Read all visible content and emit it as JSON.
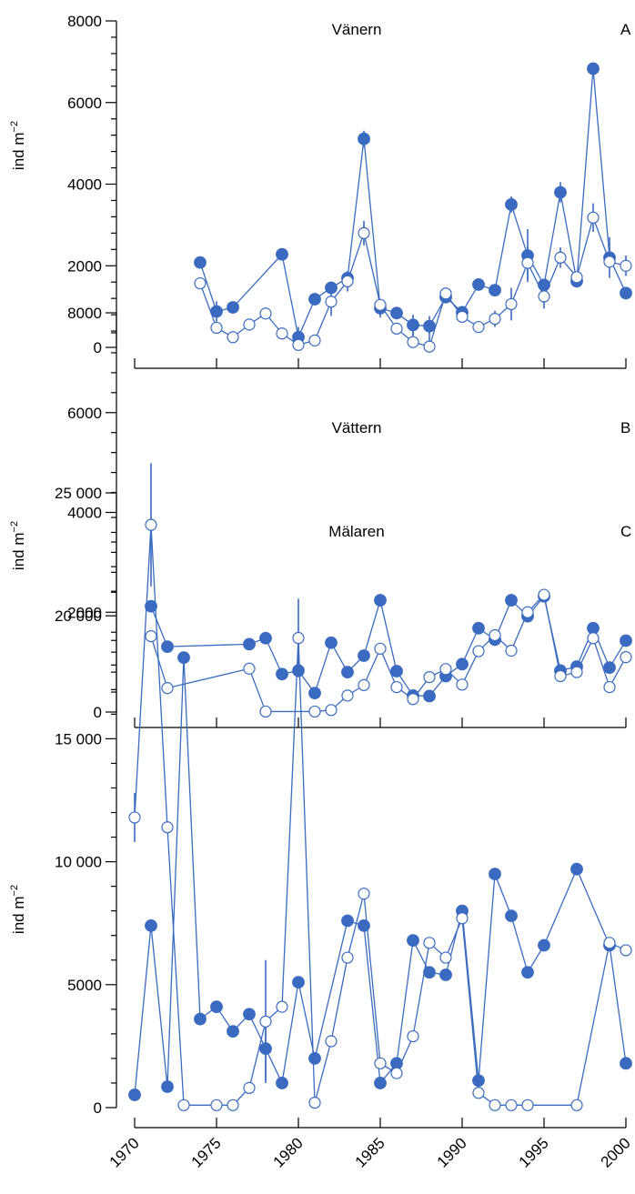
{
  "colors": {
    "series": "#3a6bc0",
    "axis": "#000000"
  },
  "x_tick_labels": [
    "1970",
    "1975",
    "1980",
    "1985",
    "1990",
    "1995",
    "2000"
  ],
  "chart_data": [
    {
      "type": "line",
      "title": "Vänern",
      "panel_letter": "A",
      "ylabel": "ind m⁻²",
      "xlim": [
        1970,
        2000
      ],
      "ylim": [
        0,
        8000
      ],
      "yticks": [
        0,
        2000,
        4000,
        6000,
        8000
      ],
      "ytick_labels": [
        "0",
        "2000",
        "4000",
        "6000",
        "8000"
      ],
      "series": [
        {
          "marker": "filled",
          "x": [
            1974,
            1975,
            1976,
            1979,
            1980,
            1981,
            1982,
            1983,
            1984,
            1985,
            1986,
            1987,
            1988,
            1989,
            1990,
            1991,
            1992,
            1993,
            1994,
            1995,
            1996,
            1997,
            1998,
            1999,
            2000
          ],
          "y": [
            2080,
            880,
            980,
            2280,
            250,
            1180,
            1460,
            1700,
            5110,
            960,
            840,
            550,
            520,
            1230,
            860,
            1540,
            1400,
            3500,
            2250,
            1530,
            3800,
            1620,
            6830,
            2200,
            1330
          ],
          "err": [
            0,
            250,
            0,
            0,
            250,
            0,
            150,
            0,
            200,
            230,
            0,
            250,
            250,
            150,
            0,
            130,
            0,
            200,
            650,
            0,
            250,
            0,
            0,
            500,
            0
          ]
        },
        {
          "marker": "open",
          "x": [
            1974,
            1975,
            1976,
            1977,
            1978,
            1979,
            1980,
            1981,
            1982,
            1983,
            1984,
            1985,
            1986,
            1987,
            1988,
            1989,
            1990,
            1991,
            1992,
            1993,
            1994,
            1995,
            1996,
            1997,
            1998,
            1999,
            2000
          ],
          "y": [
            1570,
            480,
            250,
            560,
            830,
            340,
            60,
            170,
            1120,
            1620,
            2800,
            1040,
            460,
            130,
            20,
            1320,
            750,
            500,
            700,
            1060,
            2070,
            1250,
            2200,
            1720,
            3180,
            2100,
            2000
          ],
          "err": [
            0,
            0,
            0,
            0,
            0,
            0,
            0,
            0,
            350,
            250,
            300,
            0,
            0,
            250,
            250,
            0,
            0,
            0,
            200,
            400,
            400,
            300,
            250,
            0,
            350,
            0,
            250
          ]
        }
      ]
    },
    {
      "type": "line",
      "title": "Vättern",
      "panel_letter": "B",
      "ylabel": "ind m⁻²",
      "xlim": [
        1970,
        2000
      ],
      "ylim": [
        0,
        8000
      ],
      "yticks": [
        0,
        2000,
        4000,
        6000,
        8000
      ],
      "ytick_labels": [
        "0",
        "2000",
        "4000",
        "6000",
        "8000"
      ],
      "series": [
        {
          "marker": "filled",
          "x": [
            1971,
            1972,
            1977,
            1978,
            1979,
            1980,
            1981,
            1982,
            1983,
            1984,
            1985,
            1986,
            1987,
            1988,
            1989,
            1990,
            1991,
            1992,
            1993,
            1994,
            1995,
            1996,
            1997,
            1998,
            1999,
            2000
          ],
          "y": [
            2120,
            1310,
            1360,
            1480,
            760,
            830,
            380,
            1390,
            800,
            1130,
            2240,
            820,
            330,
            320,
            720,
            960,
            1680,
            1450,
            2240,
            1920,
            2320,
            830,
            910,
            1680,
            890,
            1430
          ],
          "err": []
        },
        {
          "marker": "open",
          "x": [
            1971,
            1972,
            1977,
            1978,
            1981,
            1982,
            1983,
            1984,
            1985,
            1986,
            1987,
            1988,
            1989,
            1990,
            1991,
            1992,
            1993,
            1994,
            1995,
            1996,
            1997,
            1998,
            1999,
            2000
          ],
          "y": [
            1520,
            480,
            870,
            10,
            10,
            40,
            330,
            540,
            1270,
            500,
            260,
            700,
            860,
            550,
            1220,
            1540,
            1230,
            2000,
            2350,
            720,
            800,
            1480,
            500,
            1100
          ],
          "err": []
        }
      ]
    },
    {
      "type": "line",
      "title": "Mälaren",
      "panel_letter": "C",
      "ylabel": "ind m⁻²",
      "xlim": [
        1970,
        2000
      ],
      "ylim": [
        0,
        25000
      ],
      "yticks": [
        0,
        5000,
        10000,
        15000,
        20000,
        25000
      ],
      "ytick_labels": [
        "0",
        "5000",
        "10 000",
        "15 000",
        "20 000",
        "25 000"
      ],
      "series": [
        {
          "marker": "filled",
          "x": [
            1970,
            1971,
            1972,
            1973,
            1974,
            1975,
            1976,
            1977,
            1978,
            1979,
            1980,
            1981,
            1983,
            1984,
            1985,
            1986,
            1987,
            1988,
            1989,
            1990,
            1991,
            1992,
            1993,
            1994,
            1995,
            1997,
            1999,
            2000
          ],
          "y": [
            520,
            7400,
            850,
            18300,
            3600,
            4100,
            3100,
            3800,
            2400,
            1000,
            5100,
            2000,
            7600,
            7400,
            1000,
            1800,
            6800,
            5500,
            5400,
            8000,
            1100,
            9500,
            7800,
            5500,
            6600,
            9700,
            6600,
            1800
          ],
          "err": [
            0,
            0,
            0,
            0,
            0,
            0,
            0,
            0,
            1300,
            0,
            0,
            0,
            0,
            0,
            0,
            0,
            0,
            0,
            0,
            0,
            0,
            0,
            0,
            0,
            0,
            0,
            0,
            0
          ]
        },
        {
          "marker": "open",
          "x": [
            1970,
            1971,
            1972,
            1973,
            1975,
            1976,
            1977,
            1978,
            1979,
            1980,
            1981,
            1982,
            1983,
            1984,
            1985,
            1986,
            1987,
            1988,
            1989,
            1990,
            1991,
            1992,
            1993,
            1994,
            1997,
            1999,
            2000
          ],
          "y": [
            11800,
            23700,
            11400,
            100,
            100,
            100,
            800,
            3500,
            4100,
            19100,
            200,
            2700,
            6100,
            8700,
            1800,
            1400,
            2900,
            6700,
            6100,
            7700,
            600,
            100,
            100,
            100,
            100,
            6700,
            6400
          ],
          "err": [
            1000,
            2500,
            0,
            0,
            0,
            0,
            0,
            2500,
            0,
            1600,
            0,
            0,
            0,
            0,
            0,
            0,
            0,
            0,
            0,
            0,
            0,
            0,
            0,
            0,
            0,
            0,
            0
          ]
        }
      ]
    }
  ]
}
